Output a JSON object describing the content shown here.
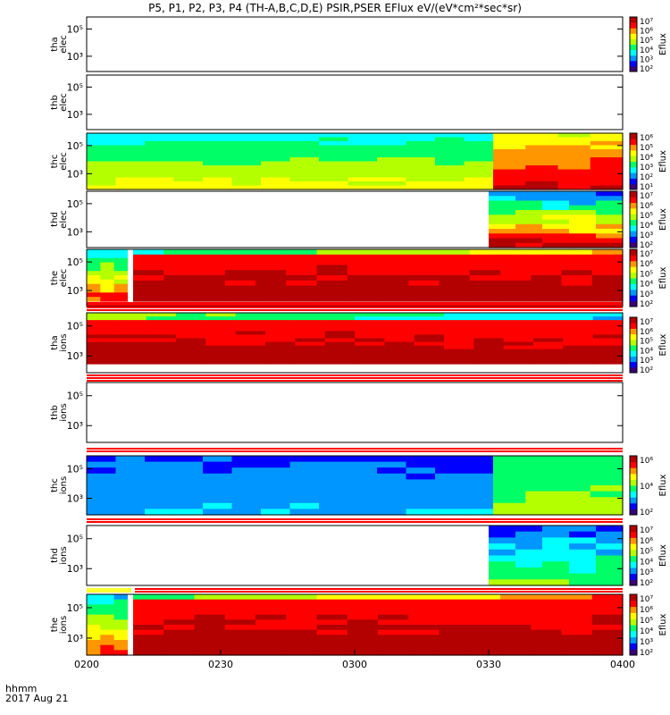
{
  "title": "P5, P1, P2, P3, P4 (TH-A,B,C,D,E) PSIR,PSER EFlux eV/(eV*cm²*sec*sr)",
  "footer": {
    "line1": "hhmm",
    "line2": "2017 Aug 21"
  },
  "chart_data": {
    "type": "heatmap",
    "x_ticks": [
      "0200",
      "0230",
      "0300",
      "0330",
      "0400"
    ],
    "xlim": [
      "0200",
      "0400"
    ],
    "panels": [
      {
        "name": "tha_elec",
        "label": [
          "tha",
          "elec"
        ],
        "yticks": [
          "10⁵",
          "10³"
        ],
        "colorbar": {
          "ticks": [
            "10⁷",
            "10⁶",
            "10⁵",
            "10⁴",
            "10³",
            "10²"
          ],
          "label": "Eflux"
        },
        "content": "empty"
      },
      {
        "name": "thb_elec",
        "label": [
          "thb",
          "elec"
        ],
        "yticks": [
          "10⁵",
          "10³"
        ],
        "colorbar": null,
        "content": "empty"
      },
      {
        "name": "thc_elec",
        "label": [
          "thc",
          "elec"
        ],
        "yticks": [
          "10⁵",
          "10³"
        ],
        "colorbar": {
          "ticks": [
            "10⁶",
            "10⁵",
            "10⁴",
            "10³",
            "10²",
            "10¹"
          ],
          "label": "Eflux"
        },
        "content": "data",
        "start": "0200",
        "end": "0400",
        "change_at": "0331"
      },
      {
        "name": "thd_elec",
        "label": [
          "thd",
          "elec"
        ],
        "yticks": [
          "10⁵",
          "10³"
        ],
        "colorbar": {
          "ticks": [
            "10⁷",
            "10⁶",
            "10⁵",
            "10⁴",
            "10³",
            "10²"
          ],
          "label": "Eflux"
        },
        "content": "data",
        "start": "0330",
        "end": "0400"
      },
      {
        "name": "the_elec",
        "label": [
          "the",
          "elec"
        ],
        "yticks": [
          "10⁵",
          "10³"
        ],
        "colorbar": {
          "ticks": [
            "10⁷",
            "10⁶",
            "10⁵",
            "10⁴",
            "10³",
            "10²"
          ],
          "label": "Eflux"
        },
        "content": "data",
        "start": "0200",
        "end": "0400",
        "gap_at": "0210"
      },
      {
        "name": "tha_ions",
        "label": [
          "tha",
          "ions"
        ],
        "yticks": [
          "10⁵",
          "10³"
        ],
        "colorbar": {
          "ticks": [
            "10⁷",
            "10⁶",
            "10⁵",
            "10⁴",
            "10³",
            "10²"
          ],
          "label": "Eflux"
        },
        "content": "data",
        "start": "0200",
        "end": "0400"
      },
      {
        "name": "thb_ions",
        "label": [
          "thb",
          "ions"
        ],
        "yticks": [
          "10⁵",
          "10³"
        ],
        "colorbar": null,
        "content": "empty"
      },
      {
        "name": "thc_ions",
        "label": [
          "thc",
          "ions"
        ],
        "yticks": [
          "10⁵",
          "10³"
        ],
        "colorbar": {
          "ticks": [
            "10⁶",
            "10⁴",
            "10²"
          ],
          "label": "Eflux"
        },
        "content": "data",
        "start": "0200",
        "end": "0400",
        "change_at": "0331"
      },
      {
        "name": "thd_ions",
        "label": [
          "thd",
          "ions"
        ],
        "yticks": [
          "10⁵",
          "10³"
        ],
        "colorbar": {
          "ticks": [
            "10⁷",
            "10⁶",
            "10⁵",
            "10⁴",
            "10³",
            "10²"
          ],
          "label": "Eflux"
        },
        "content": "data",
        "start": "0330",
        "end": "0400"
      },
      {
        "name": "the_ions",
        "label": [
          "the",
          "ions"
        ],
        "yticks": [
          "10⁵",
          "10³"
        ],
        "colorbar": {
          "ticks": [
            "10⁷",
            "10⁶",
            "10⁵",
            "10⁴",
            "10³",
            "10²"
          ],
          "label": "Eflux"
        },
        "content": "data",
        "start": "0200",
        "end": "0400",
        "gap_at": "0210"
      }
    ],
    "color_scale": [
      "#3a0077",
      "#0000ff",
      "#0096ff",
      "#00ffff",
      "#00ff66",
      "#b4ff00",
      "#ffff00",
      "#ff9600",
      "#ff0000",
      "#b30000"
    ]
  }
}
